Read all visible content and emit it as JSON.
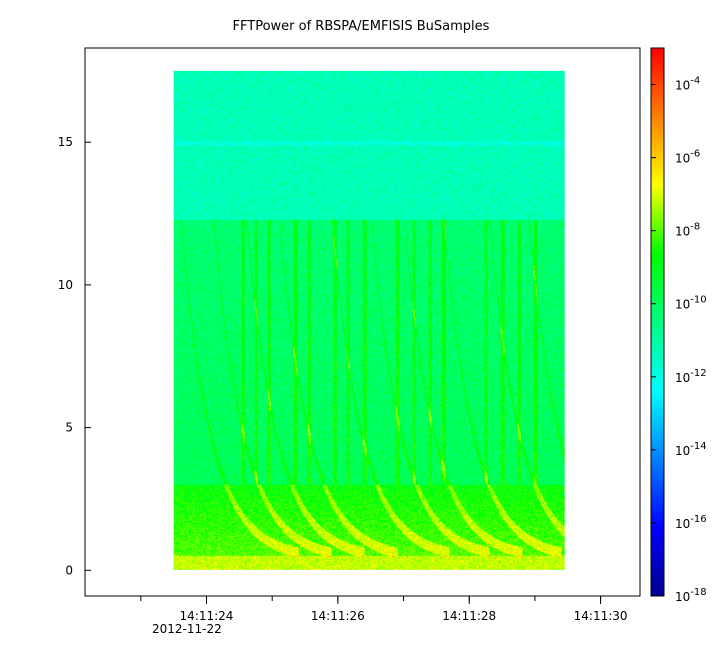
{
  "chart_data": {
    "type": "heatmap",
    "title": "FFTPower of RBSPA/EMFISIS  BuSamples",
    "xlabel": "",
    "ylabel": "",
    "x_ticks": [
      "14:11:24",
      "14:11:26",
      "14:11:28",
      "14:11:30"
    ],
    "x_tick_values": [
      24,
      26,
      28,
      30
    ],
    "x_sublabel": "2012-11-22",
    "xlim": [
      22.15,
      30.6
    ],
    "y_ticks": [
      "0",
      "5",
      "10",
      "15"
    ],
    "y_tick_values": [
      0,
      5,
      10,
      15
    ],
    "ylim": [
      -0.9,
      18.3
    ],
    "data_extent": {
      "x": [
        23.5,
        29.45
      ],
      "y": [
        0,
        17.5
      ]
    },
    "colorbar": {
      "scale": "log",
      "range": [
        1e-18,
        0.001
      ],
      "tick_labels": [
        {
          "base": "10",
          "exp": "-4",
          "value": -4
        },
        {
          "base": "10",
          "exp": "-6",
          "value": -6
        },
        {
          "base": "10",
          "exp": "-8",
          "value": -8
        },
        {
          "base": "10",
          "exp": "-10",
          "value": -10
        },
        {
          "base": "10",
          "exp": "-12",
          "value": -12
        },
        {
          "base": "10",
          "exp": "-14",
          "value": -14
        },
        {
          "base": "10",
          "exp": "-16",
          "value": -16
        },
        {
          "base": "10",
          "exp": "-18",
          "value": -18
        }
      ],
      "colors": [
        "#00008f",
        "#0000ff",
        "#0080ff",
        "#00ffff",
        "#00ff80",
        "#00ff00",
        "#ffff00",
        "#ff8000",
        "#ff0000"
      ]
    },
    "approx_levels_log10": [
      {
        "band": "0-0.5",
        "level": -7.2
      },
      {
        "band": "0.5-3",
        "level": -8.0
      },
      {
        "band": "3-12.3",
        "level": -10.0
      },
      {
        "band": "12.3-17.5",
        "level": -11.3
      }
    ],
    "features": [
      "descending whistler chorus traces from ~12 to ~0.5 frequency",
      "strong broadband power below ~3"
    ],
    "grid": false,
    "legend": "none"
  }
}
